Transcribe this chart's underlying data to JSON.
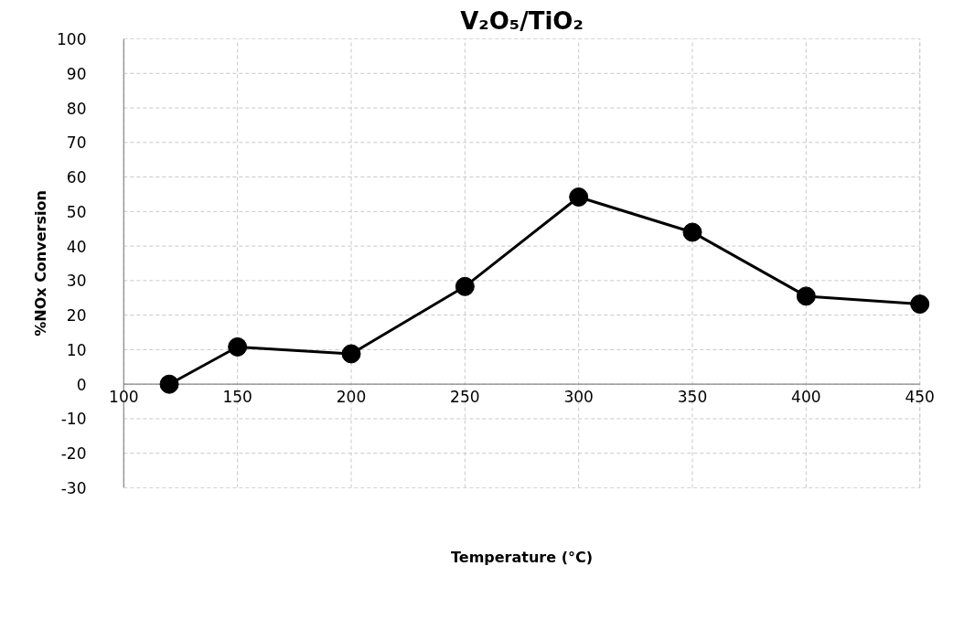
{
  "chart_data": {
    "type": "line",
    "title": "V₂O₅/TiO₂",
    "xlabel": "Temperature (°C)",
    "ylabel": "%NOx Conversion",
    "x": [
      120,
      150,
      200,
      250,
      300,
      350,
      400,
      450
    ],
    "series": [
      {
        "color": "#000000",
        "values": [
          0,
          10.8,
          8.8,
          28.3,
          54.2,
          44,
          25.5,
          23.2
        ]
      }
    ],
    "xlim": [
      100,
      450
    ],
    "xticks": [
      100,
      150,
      200,
      250,
      300,
      350,
      400,
      450
    ],
    "ylim": [
      -30,
      100
    ],
    "yticks": [
      -30,
      -20,
      -10,
      0,
      10,
      20,
      30,
      40,
      50,
      60,
      70,
      80,
      90,
      100
    ],
    "grid": true,
    "marker": "circle",
    "line_style": "solid"
  }
}
